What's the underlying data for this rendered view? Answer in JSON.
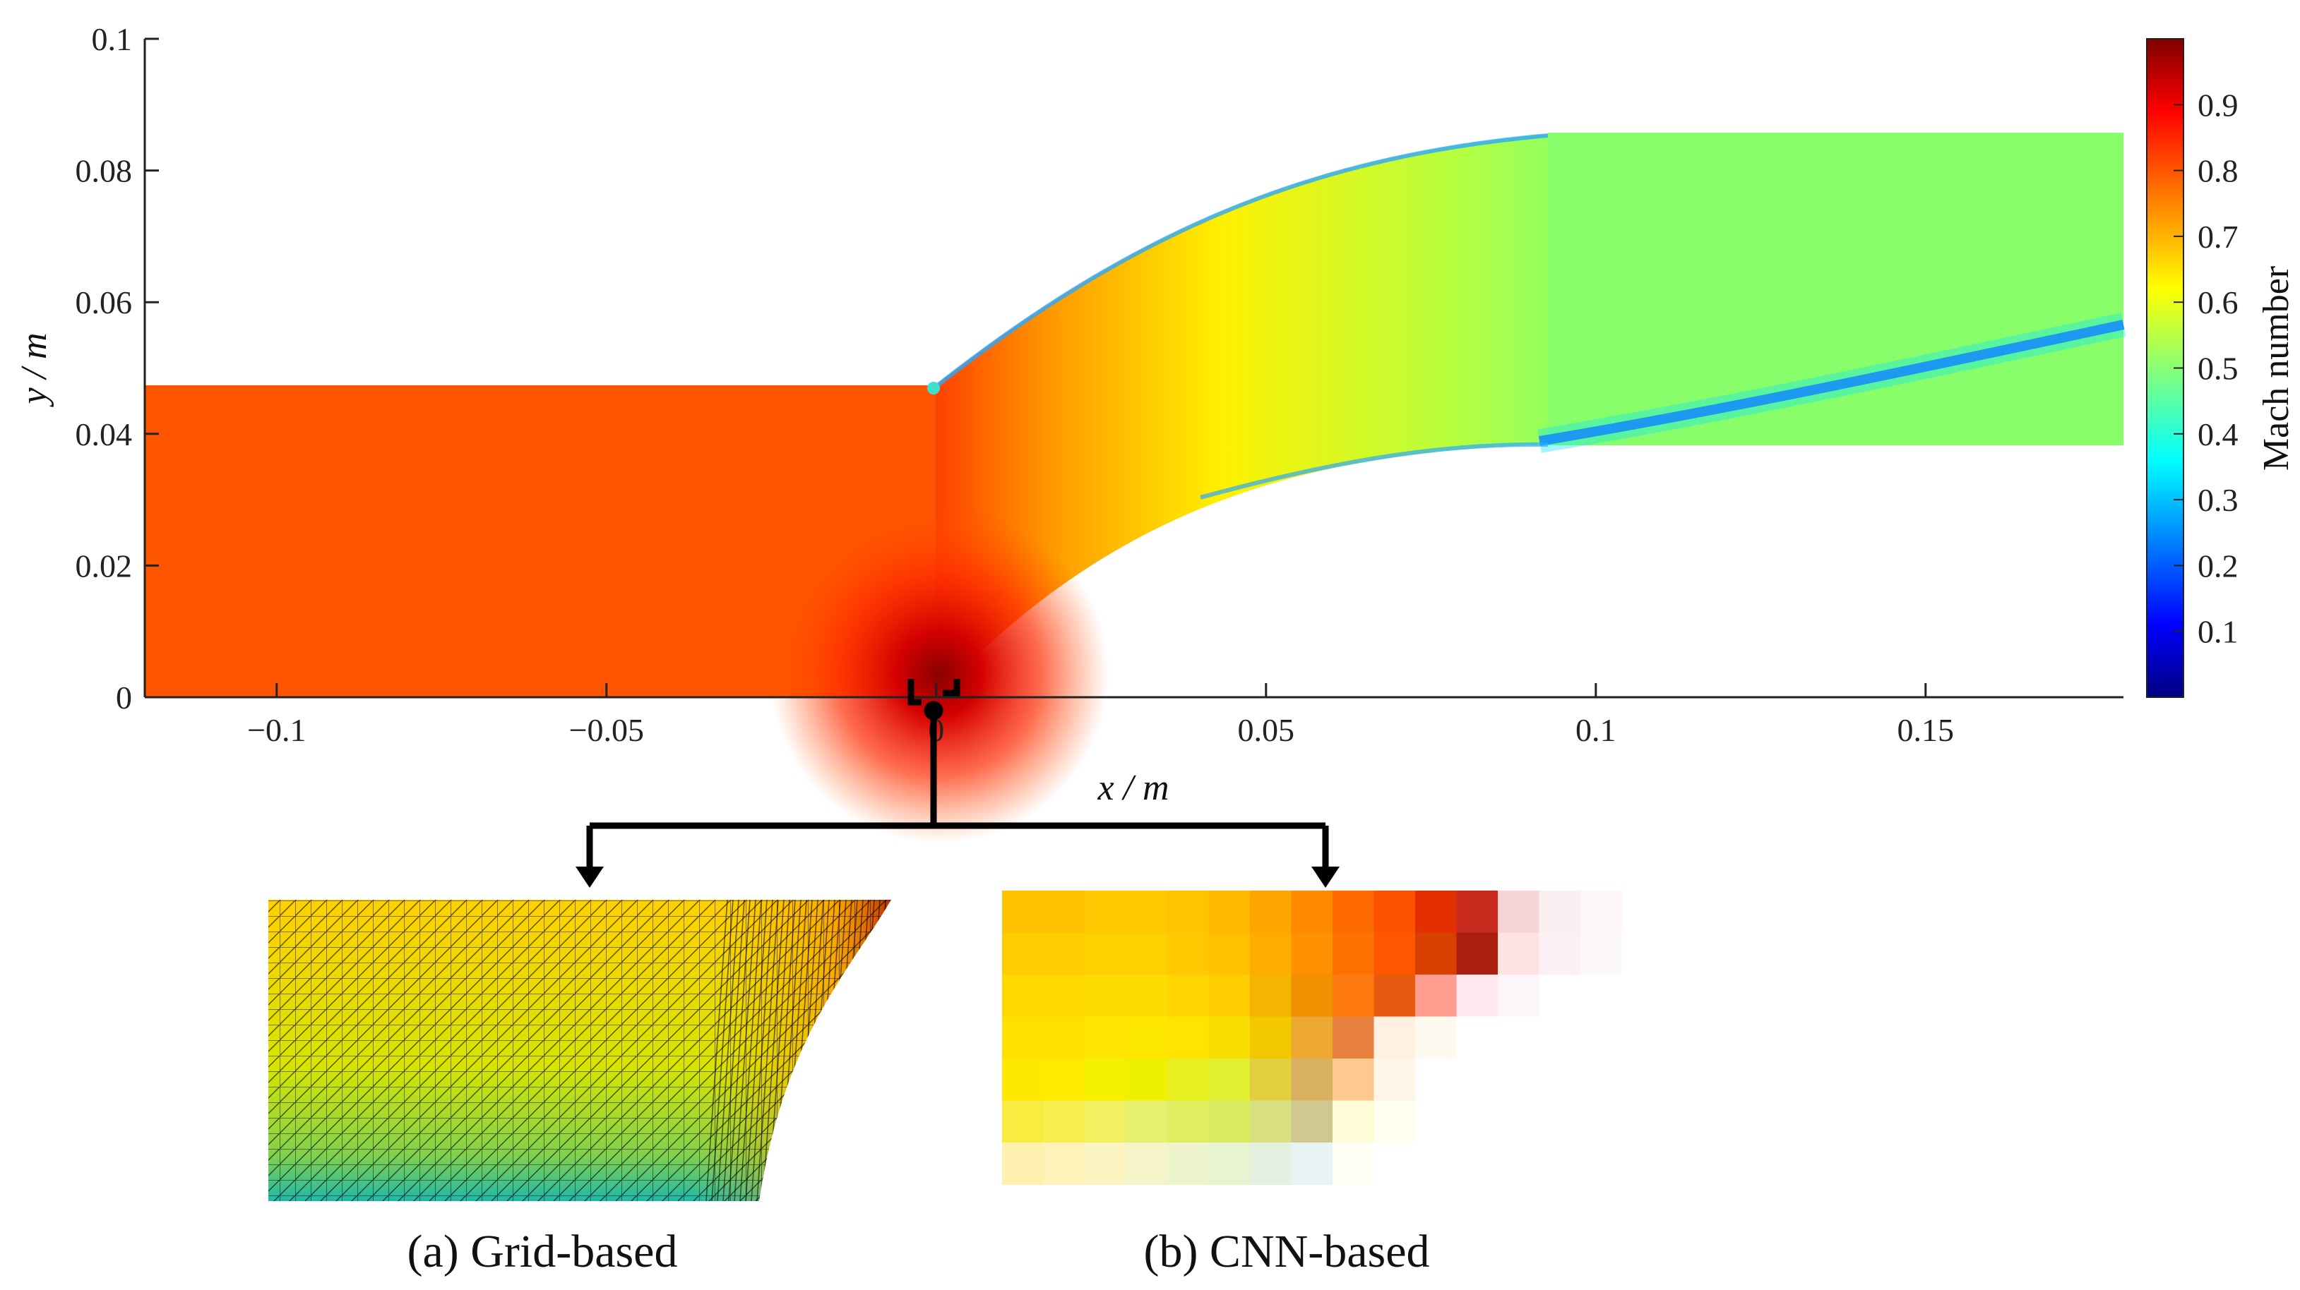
{
  "chart_data": {
    "type": "heatmap",
    "xlabel": "x / m",
    "ylabel": "y / m",
    "xlim": [
      -0.12,
      0.18
    ],
    "ylim": [
      0,
      0.1
    ],
    "x_ticks": [
      {
        "value": -0.1,
        "label": "−0.1"
      },
      {
        "value": -0.05,
        "label": "−0.05"
      },
      {
        "value": 0,
        "label": "0"
      },
      {
        "value": 0.05,
        "label": "0.05"
      },
      {
        "value": 0.1,
        "label": "0.1"
      },
      {
        "value": 0.15,
        "label": "0.15"
      }
    ],
    "y_ticks": [
      {
        "value": 0,
        "label": "0"
      },
      {
        "value": 0.02,
        "label": "0.02"
      },
      {
        "value": 0.04,
        "label": "0.04"
      },
      {
        "value": 0.06,
        "label": "0.06"
      },
      {
        "value": 0.08,
        "label": "0.08"
      },
      {
        "value": 0.1,
        "label": "0.1"
      }
    ],
    "grid": false,
    "colorbar": {
      "label": "Mach number",
      "colormap": "jet",
      "range": [
        0,
        1
      ],
      "ticks": [
        {
          "value": 0.1,
          "label": "0.1"
        },
        {
          "value": 0.2,
          "label": "0.2"
        },
        {
          "value": 0.3,
          "label": "0.3"
        },
        {
          "value": 0.4,
          "label": "0.4"
        },
        {
          "value": 0.5,
          "label": "0.5"
        },
        {
          "value": 0.6,
          "label": "0.6"
        },
        {
          "value": 0.7,
          "label": "0.7"
        },
        {
          "value": 0.8,
          "label": "0.8"
        },
        {
          "value": 0.9,
          "label": "0.9"
        }
      ]
    },
    "field_mach": {
      "inlet": 0.78,
      "throat": 0.97,
      "blade_passage_mid": 0.6,
      "outlet": 0.5,
      "wake": 0.3
    },
    "insets": [
      {
        "caption": "(a) Grid-based"
      },
      {
        "caption": "(b) CNN-based"
      }
    ],
    "colors": {
      "inlet": "#ff5500",
      "outlet": "#88ff6a",
      "wake": "#1e5bff",
      "annotation": "#000000"
    }
  }
}
